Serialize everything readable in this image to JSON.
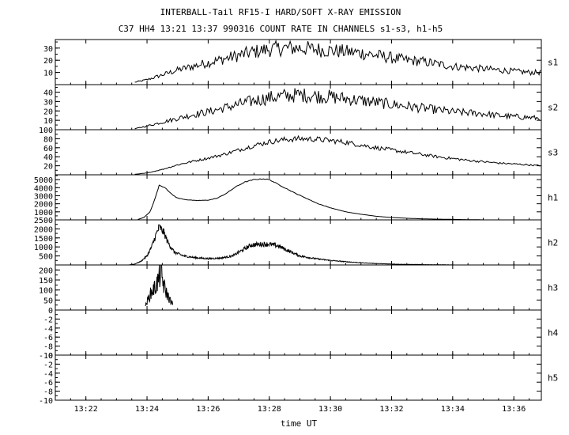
{
  "chart_data": {
    "type": "line",
    "title": "INTERBALL-Tail RF15-I HARD/SOFT X-RAY EMISSION",
    "subtitle": "C37 HH4 13:21 13:37 990316  COUNT RATE IN CHANNELS s1-s3, h1-h5",
    "xlabel": "time UT",
    "x_ticks": [
      "13:22",
      "13:24",
      "13:26",
      "13:28",
      "13:30",
      "13:32",
      "13:34",
      "13:36"
    ],
    "x_tick_minutes": [
      22,
      24,
      26,
      28,
      30,
      32,
      34,
      36
    ],
    "xlim_minutes": [
      21.0,
      36.9
    ],
    "grid": false,
    "series": [
      {
        "name": "s1",
        "ylim": [
          0,
          37
        ],
        "y_ticks": [
          10,
          20,
          30
        ],
        "x": [
          23.6,
          24.0,
          24.5,
          25.0,
          25.5,
          26.0,
          26.5,
          27.0,
          27.5,
          28.0,
          28.5,
          29.0,
          29.5,
          30.0,
          30.5,
          31.0,
          31.5,
          32.0,
          32.5,
          33.0,
          33.5,
          34.0,
          34.5,
          35.0,
          35.5,
          36.0,
          36.5,
          36.9
        ],
        "values": [
          2,
          4,
          8,
          12,
          15,
          18,
          21,
          24,
          27,
          29,
          30,
          30,
          29,
          28,
          27,
          26,
          24,
          22,
          20,
          19,
          17,
          15,
          14,
          13,
          12,
          11,
          10,
          10
        ]
      },
      {
        "name": "s2",
        "ylim": [
          0,
          48
        ],
        "y_ticks": [
          10,
          20,
          30,
          40
        ],
        "x": [
          23.6,
          24.0,
          24.5,
          25.0,
          25.5,
          26.0,
          26.5,
          27.0,
          27.5,
          28.0,
          28.5,
          29.0,
          29.5,
          30.0,
          30.5,
          31.0,
          31.5,
          32.0,
          32.5,
          33.0,
          33.5,
          34.0,
          34.5,
          35.0,
          35.5,
          36.0,
          36.5,
          36.9
        ],
        "values": [
          1,
          4,
          8,
          12,
          16,
          19,
          23,
          27,
          31,
          34,
          36,
          37,
          36,
          35,
          33,
          31,
          29,
          27,
          25,
          23,
          21,
          19,
          18,
          17,
          15,
          14,
          13,
          12
        ]
      },
      {
        "name": "s3",
        "ylim": [
          0,
          100
        ],
        "y_ticks": [
          20,
          40,
          60,
          80,
          100
        ],
        "x": [
          23.6,
          24.0,
          24.5,
          25.0,
          25.5,
          26.0,
          26.5,
          27.0,
          27.5,
          28.0,
          28.5,
          29.0,
          29.5,
          30.0,
          30.5,
          31.0,
          31.5,
          32.0,
          32.5,
          33.0,
          33.5,
          34.0,
          34.5,
          35.0,
          35.5,
          36.0,
          36.5,
          36.9
        ],
        "values": [
          1,
          4,
          12,
          22,
          30,
          37,
          45,
          55,
          65,
          73,
          78,
          80,
          79,
          76,
          72,
          66,
          60,
          55,
          50,
          45,
          40,
          36,
          32,
          29,
          26,
          24,
          22,
          20
        ]
      },
      {
        "name": "h1",
        "ylim": [
          0,
          5600
        ],
        "y_ticks": [
          1000,
          2000,
          3000,
          4000,
          5000
        ],
        "x": [
          23.7,
          23.9,
          24.1,
          24.25,
          24.4,
          24.6,
          24.8,
          25.0,
          25.3,
          25.6,
          26.0,
          26.3,
          26.6,
          26.9,
          27.2,
          27.5,
          27.8,
          28.0,
          28.2,
          28.5,
          28.8,
          29.2,
          29.6,
          30.0,
          30.5,
          31.0,
          31.5,
          32.0,
          32.5,
          33.0,
          33.5,
          34.0,
          34.5,
          35.0
        ],
        "values": [
          50,
          300,
          1000,
          2500,
          4300,
          4000,
          3200,
          2700,
          2500,
          2400,
          2450,
          2700,
          3300,
          4100,
          4700,
          5000,
          5100,
          5000,
          4600,
          4000,
          3400,
          2700,
          2000,
          1500,
          1000,
          700,
          450,
          300,
          200,
          130,
          90,
          60,
          30,
          10
        ]
      },
      {
        "name": "h2",
        "ylim": [
          0,
          2500
        ],
        "y_ticks": [
          500,
          1000,
          1500,
          2000,
          2500
        ],
        "x": [
          23.4,
          23.6,
          23.8,
          24.0,
          24.15,
          24.3,
          24.4,
          24.55,
          24.7,
          24.9,
          25.2,
          25.6,
          26.0,
          26.4,
          26.8,
          27.1,
          27.4,
          27.7,
          28.0,
          28.3,
          28.6,
          29.0,
          29.5,
          30.0,
          30.5,
          31.0,
          31.5,
          32.0,
          32.5,
          33.0,
          33.5,
          34.0
        ],
        "values": [
          0,
          50,
          200,
          500,
          1000,
          1700,
          2100,
          1800,
          1200,
          700,
          500,
          400,
          350,
          380,
          500,
          800,
          1100,
          1150,
          1150,
          1050,
          800,
          500,
          350,
          250,
          180,
          120,
          80,
          50,
          30,
          20,
          10,
          5
        ]
      },
      {
        "name": "h3",
        "ylim": [
          0,
          225
        ],
        "y_ticks": [
          50,
          100,
          150,
          200
        ],
        "x": [
          23.95,
          24.05,
          24.15,
          24.25,
          24.35,
          24.45,
          24.55,
          24.65,
          24.75,
          24.85
        ],
        "values": [
          20,
          60,
          90,
          110,
          140,
          190,
          120,
          80,
          50,
          25
        ]
      },
      {
        "name": "h4",
        "ylim": [
          -10,
          0
        ],
        "y_ticks": [
          -10,
          -8,
          -6,
          -4,
          -2,
          0
        ],
        "x": [],
        "values": []
      },
      {
        "name": "h5",
        "ylim": [
          -10,
          0
        ],
        "y_ticks": [
          -10,
          -8,
          -6,
          -4,
          -2,
          0
        ],
        "x": [],
        "values": []
      }
    ]
  }
}
